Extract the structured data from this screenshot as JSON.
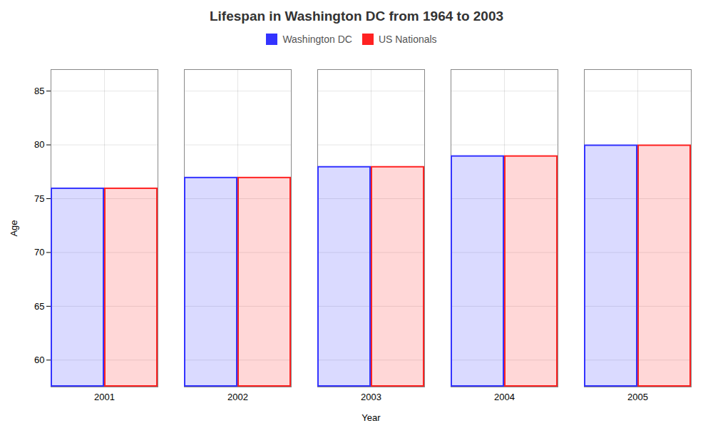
{
  "chart_data": {
    "type": "bar",
    "title": "Lifespan in Washington DC from 1964 to 2003",
    "xlabel": "Year",
    "ylabel": "Age",
    "categories": [
      "2001",
      "2002",
      "2003",
      "2004",
      "2005"
    ],
    "series": [
      {
        "name": "Washington DC",
        "color": "#3333ff",
        "values": [
          76,
          77,
          78,
          79,
          80
        ]
      },
      {
        "name": "US Nationals",
        "color": "#ff2222",
        "values": [
          76,
          77,
          78,
          79,
          80
        ]
      }
    ],
    "ylim": [
      57.5,
      87
    ],
    "yticks": [
      60,
      65,
      70,
      75,
      80,
      85
    ],
    "grid": true,
    "legend": "top"
  }
}
